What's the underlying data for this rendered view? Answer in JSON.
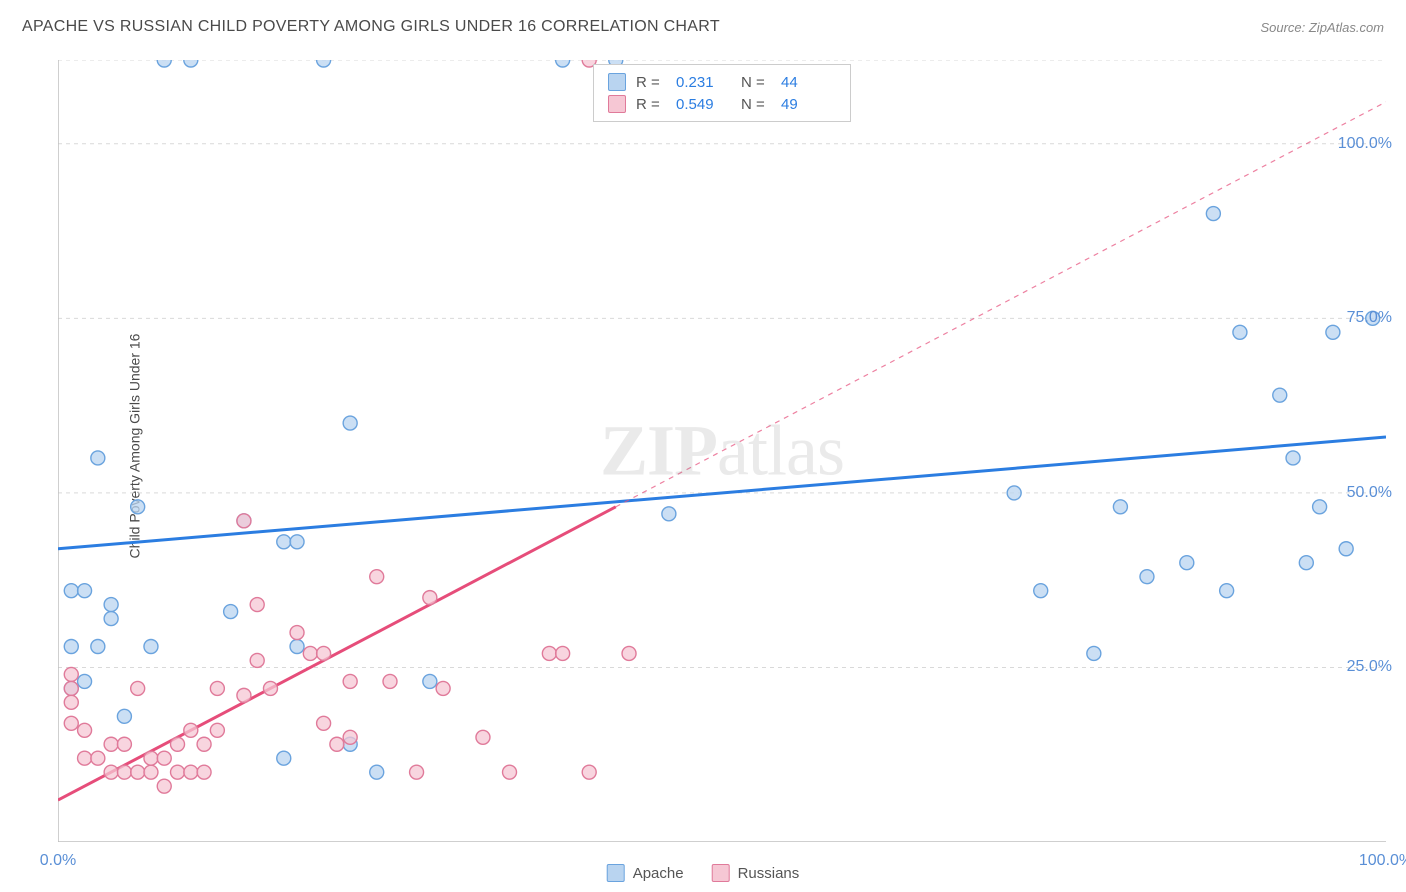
{
  "title": "APACHE VS RUSSIAN CHILD POVERTY AMONG GIRLS UNDER 16 CORRELATION CHART",
  "source_label": "Source: ZipAtlas.com",
  "ylabel": "Child Poverty Among Girls Under 16",
  "watermark": {
    "bold": "ZIP",
    "rest": "atlas"
  },
  "chart": {
    "type": "scatter",
    "xlim": [
      0,
      100
    ],
    "ylim": [
      0,
      112
    ],
    "x_ticks": [
      0,
      12.5,
      25,
      37.5,
      50,
      62.5,
      75,
      87.5,
      100
    ],
    "x_tick_labels": {
      "0": "0.0%",
      "100": "100.0%"
    },
    "y_gridlines": [
      25,
      50,
      75,
      100,
      112
    ],
    "y_tick_labels": {
      "25": "25.0%",
      "50": "50.0%",
      "75": "75.0%",
      "100": "100.0%"
    },
    "background_color": "#ffffff",
    "grid_color": "#d9d9d9",
    "axis_color": "#bfbfbf",
    "series": [
      {
        "name": "Apache",
        "marker_fill": "#b9d4f0",
        "marker_stroke": "#6aa3de",
        "marker_radius": 7,
        "trend_color": "#2b7de1",
        "trend_width": 3,
        "trend_solid_end_x": 100,
        "trend_y1": 42,
        "trend_y2": 58,
        "R": "0.231",
        "N": "44",
        "points": [
          [
            8,
            112
          ],
          [
            10,
            112
          ],
          [
            20,
            112
          ],
          [
            38,
            112
          ],
          [
            42,
            112
          ],
          [
            3,
            55
          ],
          [
            6,
            48
          ],
          [
            1,
            36
          ],
          [
            2,
            36
          ],
          [
            4,
            34
          ],
          [
            1,
            28
          ],
          [
            3,
            28
          ],
          [
            7,
            28
          ],
          [
            2,
            23
          ],
          [
            1,
            22
          ],
          [
            5,
            18
          ],
          [
            4,
            32
          ],
          [
            14,
            46
          ],
          [
            17,
            43
          ],
          [
            18,
            43
          ],
          [
            13,
            33
          ],
          [
            22,
            60
          ],
          [
            18,
            28
          ],
          [
            22,
            14
          ],
          [
            17,
            12
          ],
          [
            28,
            23
          ],
          [
            24,
            10
          ],
          [
            46,
            47
          ],
          [
            72,
            50
          ],
          [
            78,
            27
          ],
          [
            87,
            90
          ],
          [
            89,
            73
          ],
          [
            92,
            64
          ],
          [
            93,
            55
          ],
          [
            96,
            73
          ],
          [
            95,
            48
          ],
          [
            74,
            36
          ],
          [
            80,
            48
          ],
          [
            82,
            38
          ],
          [
            85,
            40
          ],
          [
            88,
            36
          ],
          [
            94,
            40
          ],
          [
            97,
            42
          ],
          [
            99,
            75
          ]
        ]
      },
      {
        "name": "Russians",
        "marker_fill": "#f6c7d4",
        "marker_stroke": "#e07a9a",
        "marker_radius": 7,
        "trend_color": "#e64d7a",
        "trend_width": 3,
        "trend_solid_end_x": 42,
        "trend_y1": 6,
        "trend_y2": 106,
        "R": "0.549",
        "N": "49",
        "points": [
          [
            40,
            112
          ],
          [
            1,
            24
          ],
          [
            1,
            22
          ],
          [
            1,
            20
          ],
          [
            1,
            17
          ],
          [
            2,
            16
          ],
          [
            2,
            12
          ],
          [
            3,
            12
          ],
          [
            4,
            10
          ],
          [
            4,
            14
          ],
          [
            5,
            10
          ],
          [
            5,
            14
          ],
          [
            6,
            22
          ],
          [
            6,
            10
          ],
          [
            7,
            10
          ],
          [
            7,
            12
          ],
          [
            8,
            8
          ],
          [
            8,
            12
          ],
          [
            9,
            10
          ],
          [
            9,
            14
          ],
          [
            10,
            10
          ],
          [
            10,
            16
          ],
          [
            11,
            10
          ],
          [
            11,
            14
          ],
          [
            12,
            16
          ],
          [
            12,
            22
          ],
          [
            14,
            46
          ],
          [
            14,
            21
          ],
          [
            15,
            34
          ],
          [
            15,
            26
          ],
          [
            16,
            22
          ],
          [
            18,
            30
          ],
          [
            19,
            27
          ],
          [
            20,
            27
          ],
          [
            20,
            17
          ],
          [
            21,
            14
          ],
          [
            22,
            23
          ],
          [
            22,
            15
          ],
          [
            24,
            38
          ],
          [
            25,
            23
          ],
          [
            27,
            10
          ],
          [
            28,
            35
          ],
          [
            29,
            22
          ],
          [
            32,
            15
          ],
          [
            34,
            10
          ],
          [
            37,
            27
          ],
          [
            38,
            27
          ],
          [
            40,
            10
          ],
          [
            43,
            27
          ]
        ]
      }
    ]
  },
  "legend_bottom": [
    {
      "label": "Apache",
      "fill": "#b9d4f0",
      "stroke": "#6aa3de"
    },
    {
      "label": "Russians",
      "fill": "#f6c7d4",
      "stroke": "#e07a9a"
    }
  ]
}
